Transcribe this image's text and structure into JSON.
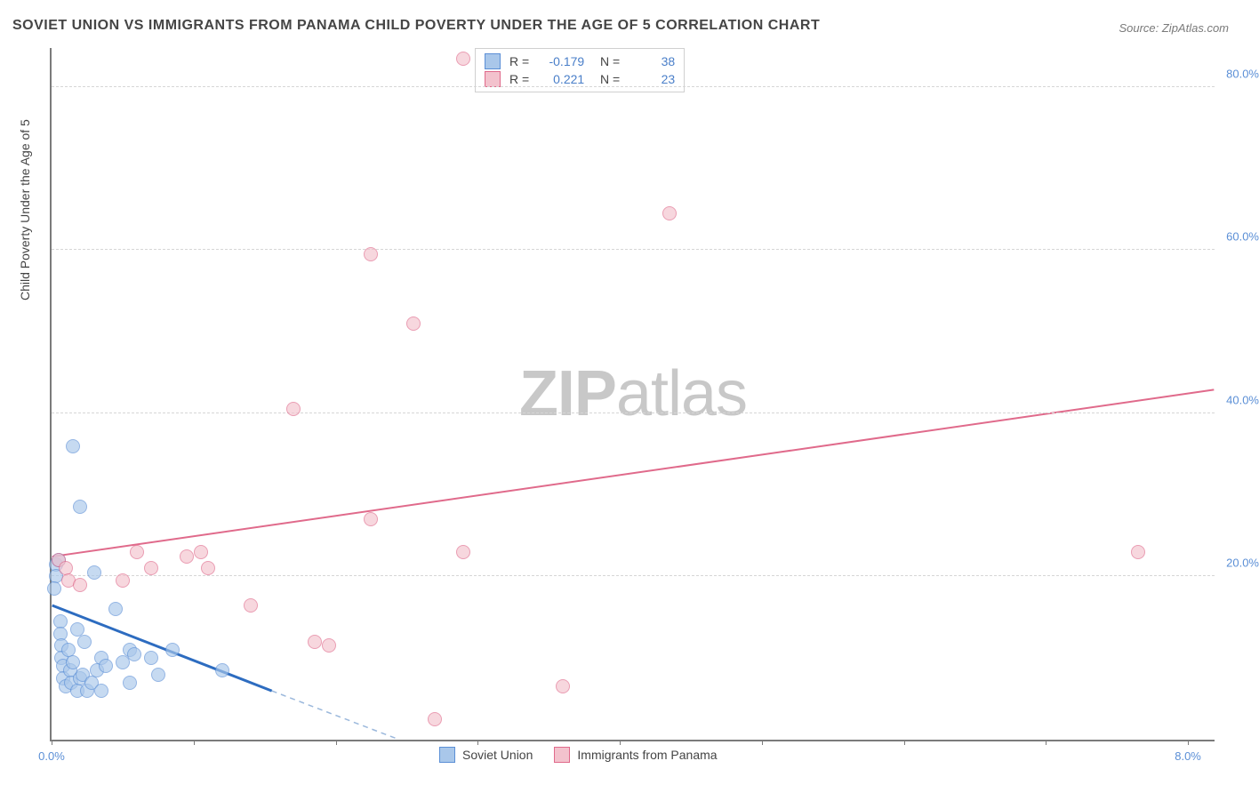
{
  "title": "SOVIET UNION VS IMMIGRANTS FROM PANAMA CHILD POVERTY UNDER THE AGE OF 5 CORRELATION CHART",
  "source": "Source: ZipAtlas.com",
  "watermark_bold": "ZIP",
  "watermark_light": "atlas",
  "chart": {
    "type": "scatter",
    "ylabel": "Child Poverty Under the Age of 5",
    "background_color": "#ffffff",
    "grid_color": "#d6d6d6",
    "axis_color": "#7b7b7b",
    "xlim": [
      0,
      8.2
    ],
    "ylim": [
      0,
      85
    ],
    "ytick_values": [
      20,
      40,
      60,
      80
    ],
    "ytick_labels": [
      "20.0%",
      "40.0%",
      "60.0%",
      "80.0%"
    ],
    "xtick_values": [
      0,
      1,
      2,
      3,
      4,
      5,
      6,
      7,
      8
    ],
    "xtick_labels_shown": {
      "0": "0.0%",
      "8": "8.0%"
    },
    "marker_radius": 8,
    "marker_stroke_width": 1,
    "series": [
      {
        "name": "Soviet Union",
        "key": "soviet",
        "fill_color": "#a9c7ea",
        "stroke_color": "#5b8fd6",
        "fill_opacity": 0.65,
        "r_value": "-0.179",
        "n_value": "38",
        "trend": {
          "x1": 0.0,
          "y1": 16.5,
          "x2": 1.55,
          "y2": 6.0,
          "solid_color": "#2d6cc0",
          "width": 3
        },
        "trend_ext": {
          "x1": 1.55,
          "y1": 6.0,
          "x2": 2.45,
          "y2": 0.0,
          "dash_color": "#9bb8dc"
        },
        "points": [
          [
            0.03,
            21.5
          ],
          [
            0.03,
            20.0
          ],
          [
            0.02,
            18.5
          ],
          [
            0.05,
            22.0
          ],
          [
            0.06,
            14.5
          ],
          [
            0.06,
            13.0
          ],
          [
            0.07,
            11.5
          ],
          [
            0.07,
            10.0
          ],
          [
            0.08,
            9.0
          ],
          [
            0.08,
            7.5
          ],
          [
            0.1,
            6.5
          ],
          [
            0.12,
            11.0
          ],
          [
            0.13,
            8.5
          ],
          [
            0.14,
            7.0
          ],
          [
            0.15,
            9.5
          ],
          [
            0.18,
            13.5
          ],
          [
            0.18,
            6.0
          ],
          [
            0.2,
            7.5
          ],
          [
            0.22,
            8.0
          ],
          [
            0.23,
            12.0
          ],
          [
            0.25,
            6.0
          ],
          [
            0.28,
            7.0
          ],
          [
            0.3,
            20.5
          ],
          [
            0.32,
            8.5
          ],
          [
            0.35,
            10.0
          ],
          [
            0.35,
            6.0
          ],
          [
            0.38,
            9.0
          ],
          [
            0.45,
            16.0
          ],
          [
            0.5,
            9.5
          ],
          [
            0.55,
            11.0
          ],
          [
            0.55,
            7.0
          ],
          [
            0.58,
            10.5
          ],
          [
            0.7,
            10.0
          ],
          [
            0.75,
            8.0
          ],
          [
            0.85,
            11.0
          ],
          [
            0.15,
            36.0
          ],
          [
            0.2,
            28.5
          ],
          [
            1.2,
            8.5
          ]
        ]
      },
      {
        "name": "Immigrants from Panama",
        "key": "panama",
        "fill_color": "#f3c2cd",
        "stroke_color": "#e06a8b",
        "fill_opacity": 0.65,
        "r_value": "0.221",
        "n_value": "23",
        "trend": {
          "x1": 0.0,
          "y1": 22.5,
          "x2": 8.2,
          "y2": 43.0,
          "solid_color": "#e06a8b",
          "width": 2
        },
        "points": [
          [
            0.05,
            22.0
          ],
          [
            0.1,
            21.0
          ],
          [
            0.12,
            19.5
          ],
          [
            0.2,
            19.0
          ],
          [
            0.5,
            19.5
          ],
          [
            0.6,
            23.0
          ],
          [
            0.7,
            21.0
          ],
          [
            0.95,
            22.5
          ],
          [
            1.05,
            23.0
          ],
          [
            1.1,
            21.0
          ],
          [
            1.4,
            16.5
          ],
          [
            1.7,
            40.5
          ],
          [
            1.85,
            12.0
          ],
          [
            1.95,
            11.5
          ],
          [
            2.25,
            27.0
          ],
          [
            2.25,
            59.5
          ],
          [
            2.55,
            51.0
          ],
          [
            2.7,
            2.5
          ],
          [
            2.9,
            23.0
          ],
          [
            2.9,
            83.5
          ],
          [
            3.6,
            6.5
          ],
          [
            4.35,
            64.5
          ],
          [
            7.65,
            23.0
          ]
        ]
      }
    ],
    "legend_bottom": [
      {
        "label": "Soviet Union",
        "fill": "#a9c7ea",
        "stroke": "#5b8fd6"
      },
      {
        "label": "Immigrants from Panama",
        "fill": "#f3c2cd",
        "stroke": "#e06a8b"
      }
    ]
  }
}
